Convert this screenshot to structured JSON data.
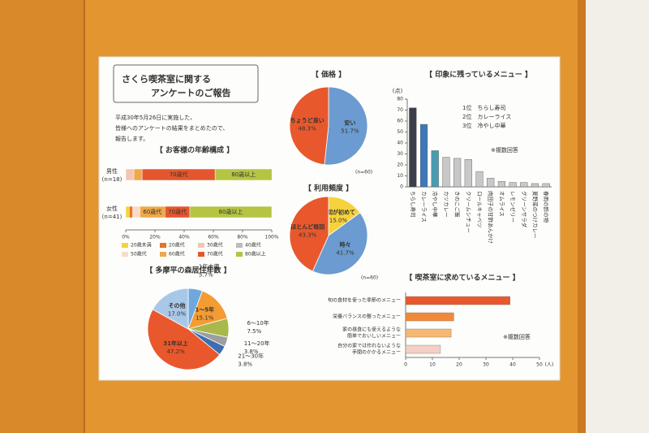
{
  "header": {
    "title_lines": [
      "さくら喫茶室に関する",
      "アンケートのご報告"
    ],
    "intro_lines": [
      "平成30年5月26日に実施した、",
      "皆様へのアンケートの結果をまとめたので、",
      "報告します。"
    ]
  },
  "chart_data": [
    {
      "type": "stacked_bar",
      "title": "【 お客様の年齢構成 】",
      "categories": [
        "男性",
        "女性"
      ],
      "category_notes": [
        "(n=18)",
        "(n=41)"
      ],
      "series": [
        {
          "name": "20歳未満",
          "color": "#f5d33c",
          "values": [
            0,
            2.4
          ]
        },
        {
          "name": "20歳代",
          "color": "#e8732a",
          "values": [
            0,
            2.4
          ]
        },
        {
          "name": "30歳代",
          "color": "#f3c6b4",
          "values": [
            5.6,
            0
          ]
        },
        {
          "name": "40歳代",
          "color": "#bdbdbd",
          "values": [
            0,
            0
          ]
        },
        {
          "name": "50歳代",
          "color": "#f7dcc8",
          "values": [
            0,
            4.9
          ]
        },
        {
          "name": "60歳代",
          "color": "#f0a848",
          "values": [
            5.6,
            17.1
          ]
        },
        {
          "name": "70歳代",
          "color": "#e4572e",
          "values": [
            50,
            17.1
          ]
        },
        {
          "name": "80歳以上",
          "color": "#b5c443",
          "values": [
            38.9,
            56.1
          ]
        }
      ],
      "xlim": [
        0,
        100
      ],
      "xticks": [
        {
          "value": 0,
          "label": "0%"
        },
        {
          "value": 20,
          "label": "20%"
        },
        {
          "value": 40,
          "label": "40%"
        },
        {
          "value": 60,
          "label": "60%"
        },
        {
          "value": 80,
          "label": "80%"
        },
        {
          "value": 100,
          "label": "100%"
        }
      ]
    },
    {
      "type": "pie",
      "title": "【 多摩平の森居住年数 】",
      "labels": [
        "1年未満",
        "1～5年",
        "6～10年",
        "11～20年",
        "21～30年",
        "31年以上",
        "その他"
      ],
      "values": [
        5.7,
        15.1,
        7.5,
        3.8,
        3.8,
        47.2,
        17.0
      ],
      "value_labels": [
        "5.7%",
        "15.1%",
        "7.5%",
        "3.8%",
        "3.8%",
        "47.2%",
        "17.0%"
      ],
      "colors": [
        "#6fa8dc",
        "#f39c34",
        "#a8b84a",
        "#9e9e9e",
        "#3d6fb0",
        "#e8582c",
        "#a9c8e8"
      ]
    },
    {
      "type": "pie",
      "title": "【 価格 】",
      "note": "(n=60)",
      "labels": [
        "安い",
        "ちょうど良い"
      ],
      "values": [
        51.7,
        48.3
      ],
      "value_labels": [
        "51.7%",
        "48.3%"
      ],
      "colors": [
        "#6b9bd0",
        "#e8582c"
      ]
    },
    {
      "type": "pie",
      "title": "【 利用頻度 】",
      "note": "(n=60)",
      "labels": [
        "今回が初めて",
        "時々",
        "ほとんど毎回"
      ],
      "values": [
        15.0,
        41.7,
        43.3
      ],
      "value_labels": [
        "15.0%",
        "41.7%",
        "43.3%"
      ],
      "colors": [
        "#f5d33c",
        "#6b9bd0",
        "#e8582c"
      ]
    },
    {
      "type": "bar",
      "title": "【 印象に残っているメニュー 】",
      "ylabel": "(点)",
      "categories": [
        "ちらし寿司",
        "カレーライス",
        "冷やし中華",
        "カツカレー",
        "きのこご飯",
        "クリームシチュー",
        "ロールキャベツ",
        "肉団子の甘酢あんかけ",
        "オムライス",
        "レモンゼリー",
        "グリーンサラダ",
        "夏野菜のつけカレー",
        "春雨の酢の物"
      ],
      "values": [
        72,
        57,
        33,
        27,
        26,
        25,
        14,
        8,
        5,
        4,
        4,
        3,
        3
      ],
      "colors": [
        "#3a3f4a",
        "#3d78b8",
        "#4a9bb0",
        "#c8c8c8",
        "#c8c8c8",
        "#c8c8c8",
        "#c8c8c8",
        "#c8c8c8",
        "#c8c8c8",
        "#c8c8c8",
        "#c8c8c8",
        "#c8c8c8",
        "#c8c8c8"
      ],
      "ylim": [
        0,
        80
      ],
      "yticks": [
        0,
        10,
        20,
        30,
        40,
        50,
        60,
        70,
        80
      ],
      "annotations": [
        "1位　ちらし寿司",
        "2位　カレーライス",
        "3位　冷やし中華"
      ],
      "note": "※複数回答"
    },
    {
      "type": "hbar",
      "title": "【 喫茶室に求めているメニュー 】",
      "xlabel": "(人)",
      "categories": [
        [
          "旬の食材を使った季節のメニュー"
        ],
        [
          "栄養バランスの整ったメニュー"
        ],
        [
          "家の昼食にも使えるような",
          "簡単でおいしいメニュー"
        ],
        [
          "自分の家では作れないような",
          "手間のかかるメニュー"
        ]
      ],
      "values": [
        39,
        18,
        17,
        13
      ],
      "colors": [
        "#e8582c",
        "#f08a3a",
        "#f6b872",
        "#f3cfc4"
      ],
      "xlim": [
        0,
        50
      ],
      "xticks": [
        0,
        10,
        20,
        30,
        40,
        50
      ],
      "note": "※複数回答"
    }
  ]
}
